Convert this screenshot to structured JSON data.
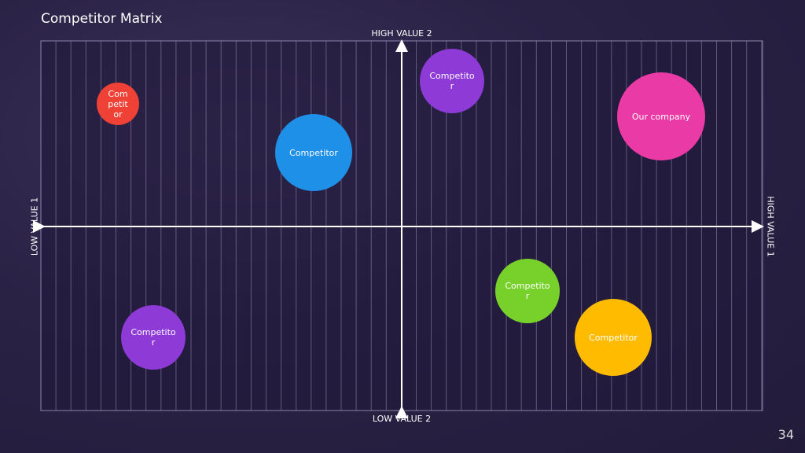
{
  "header": {
    "title": "Competitor Matrix"
  },
  "axes": {
    "top": "HIGH VALUE 2",
    "bottom": "LOW VALUE 2",
    "left": "LOW VALUE 1",
    "right": "HIGH VALUE 1"
  },
  "nodes": [
    {
      "label": "Competitor"
    },
    {
      "label": "Competitor"
    },
    {
      "label": "Competitor"
    },
    {
      "label": "Our company"
    },
    {
      "label": "Competitor"
    },
    {
      "label": "Competitor"
    },
    {
      "label": "Competitor"
    }
  ],
  "footer": {
    "page": "34"
  }
}
